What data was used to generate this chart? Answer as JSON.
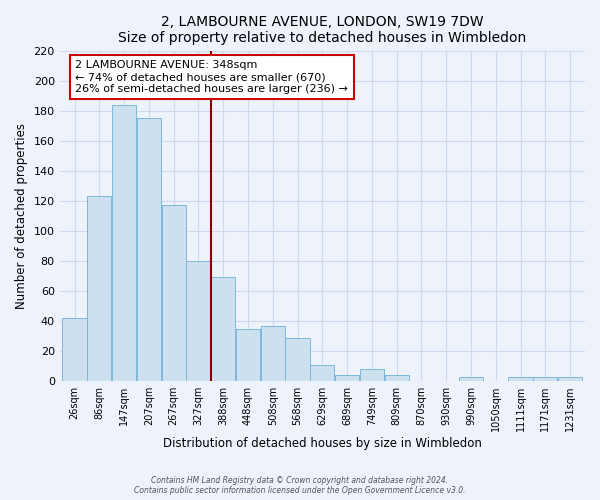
{
  "title": "2, LAMBOURNE AVENUE, LONDON, SW19 7DW",
  "subtitle": "Size of property relative to detached houses in Wimbledon",
  "xlabel": "Distribution of detached houses by size in Wimbledon",
  "ylabel": "Number of detached properties",
  "bar_labels": [
    "26sqm",
    "86sqm",
    "147sqm",
    "207sqm",
    "267sqm",
    "327sqm",
    "388sqm",
    "448sqm",
    "508sqm",
    "568sqm",
    "629sqm",
    "689sqm",
    "749sqm",
    "809sqm",
    "870sqm",
    "930sqm",
    "990sqm",
    "1050sqm",
    "1111sqm",
    "1171sqm",
    "1231sqm"
  ],
  "bar_values": [
    42,
    123,
    184,
    175,
    117,
    80,
    69,
    35,
    37,
    29,
    11,
    4,
    8,
    4,
    0,
    0,
    3,
    0,
    3,
    3,
    3
  ],
  "bar_color": "#cce0f0",
  "bar_edge_color": "#7ab8d8",
  "ylim": [
    0,
    220
  ],
  "yticks": [
    0,
    20,
    40,
    60,
    80,
    100,
    120,
    140,
    160,
    180,
    200,
    220
  ],
  "property_line_color": "#8b0000",
  "annotation_title": "2 LAMBOURNE AVENUE: 348sqm",
  "annotation_line1": "← 74% of detached houses are smaller (670)",
  "annotation_line2": "26% of semi-detached houses are larger (236) →",
  "annotation_box_color": "#ffffff",
  "annotation_box_edge": "#cc0000",
  "footer_line1": "Contains HM Land Registry data © Crown copyright and database right 2024.",
  "footer_line2": "Contains public sector information licensed under the Open Government Licence v3.0.",
  "background_color": "#eef2fb",
  "grid_color": "#d0d8ee",
  "plot_bg_color": "#eef2fb"
}
